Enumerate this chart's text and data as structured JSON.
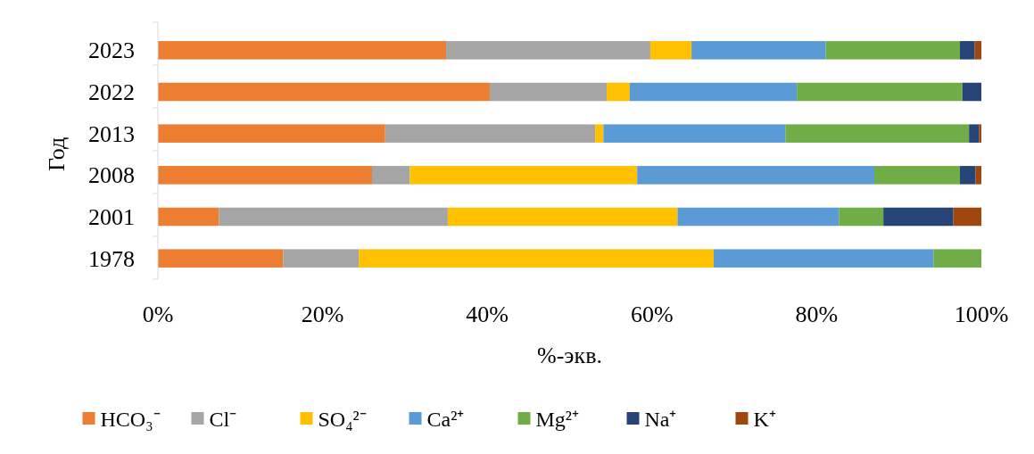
{
  "chart_data": {
    "type": "bar",
    "orientation": "horizontal",
    "stacked": true,
    "xlabel": "%-экв.",
    "ylabel": "Год",
    "categories": [
      "2023",
      "2022",
      "2013",
      "2008",
      "2001",
      "1978"
    ],
    "series": [
      {
        "name": "HCO₃⁻",
        "color": "#ed7d31",
        "values": [
          35.0,
          40.3,
          27.6,
          26.0,
          7.4,
          15.2
        ]
      },
      {
        "name": "Cl⁻",
        "color": "#a5a5a5",
        "values": [
          24.8,
          14.2,
          25.5,
          4.6,
          27.8,
          9.2
        ]
      },
      {
        "name": "SO₄²⁻",
        "color": "#ffc000",
        "values": [
          5.0,
          2.8,
          1.0,
          27.6,
          27.9,
          43.1
        ]
      },
      {
        "name": "Ca²⁺",
        "color": "#5b9bd5",
        "values": [
          16.3,
          20.3,
          22.1,
          28.8,
          19.6,
          26.7
        ]
      },
      {
        "name": "Mg²⁺",
        "color": "#70ad47",
        "values": [
          16.3,
          20.1,
          22.3,
          10.4,
          5.4,
          5.8
        ]
      },
      {
        "name": "Na⁺",
        "color": "#264478",
        "values": [
          1.8,
          2.3,
          1.2,
          1.9,
          8.5,
          0
        ]
      },
      {
        "name": "K⁺",
        "color": "#9e480e",
        "values": [
          0.8,
          0,
          0.3,
          0.7,
          3.4,
          0
        ]
      }
    ],
    "xlim": [
      0,
      100
    ],
    "xticks": [
      {
        "value": 0,
        "label": "0%"
      },
      {
        "value": 20,
        "label": "20%"
      },
      {
        "value": 40,
        "label": "40%"
      },
      {
        "value": 60,
        "label": "60%"
      },
      {
        "value": 80,
        "label": "80%"
      },
      {
        "value": 100,
        "label": "100%"
      }
    ],
    "grid": false,
    "legend": "bottom"
  }
}
